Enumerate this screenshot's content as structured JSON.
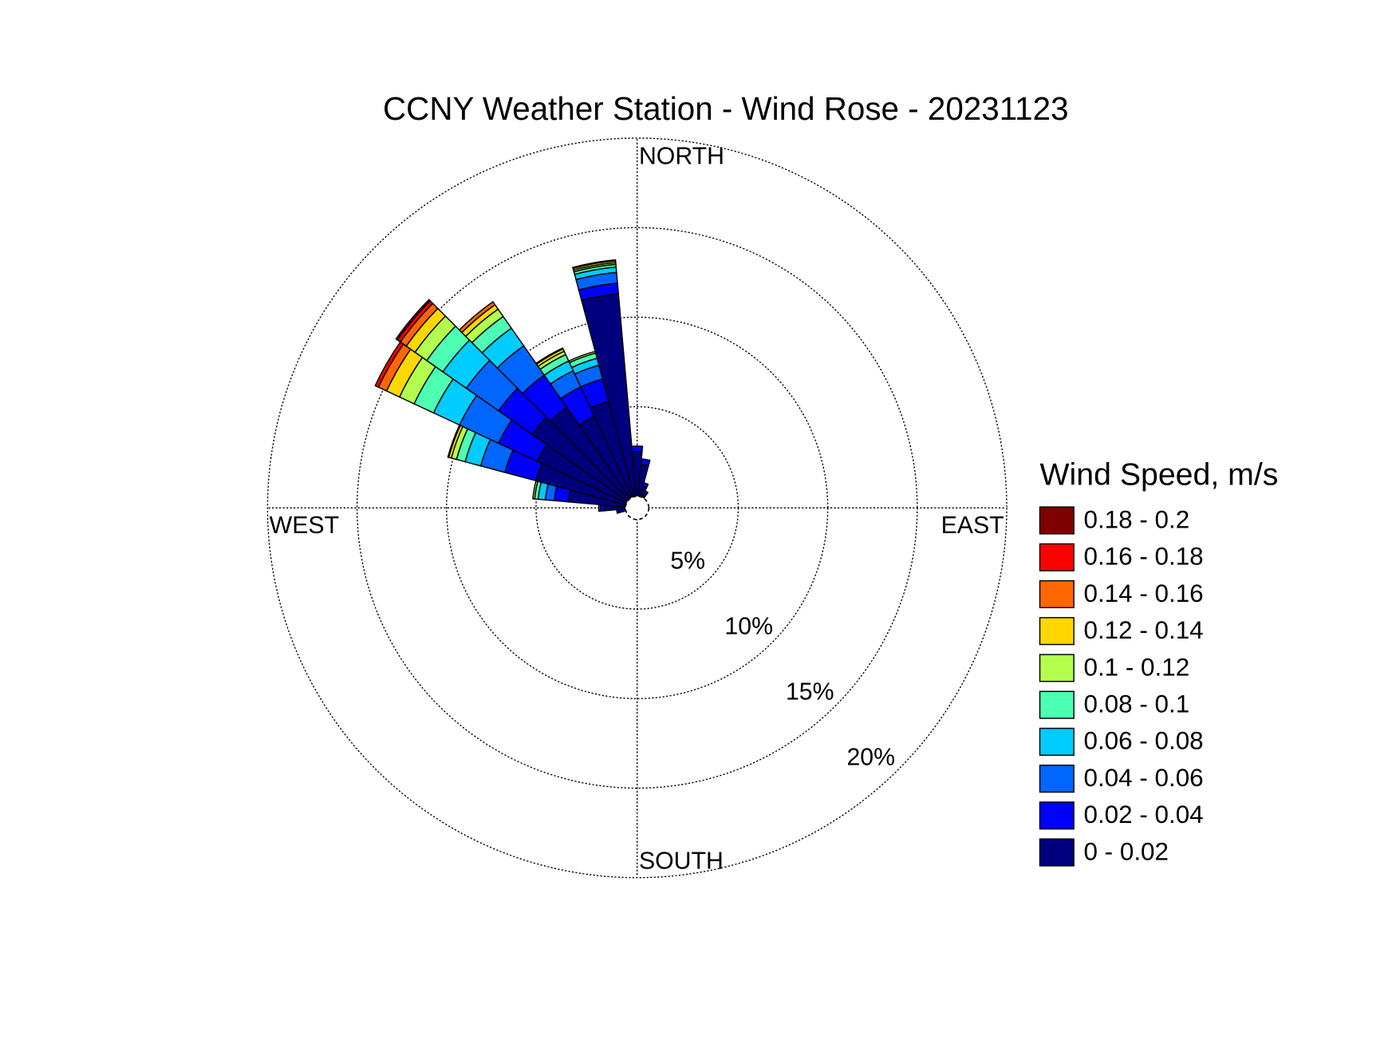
{
  "chart_data": {
    "type": "windrose",
    "title": "CCNY Weather Station - Wind Rose - 20231123",
    "direction_labels": {
      "north": "NORTH",
      "east": "EAST",
      "south": "SOUTH",
      "west": "WEST"
    },
    "legend_title": "Wind Speed, m/s",
    "directions": [
      260,
      270,
      280,
      290,
      300,
      310,
      320,
      330,
      340,
      350,
      0,
      10,
      20,
      30
    ],
    "rlim": [
      0,
      20
    ],
    "rticks": [
      {
        "value": 5,
        "label": "5%"
      },
      {
        "value": 10,
        "label": "10%"
      },
      {
        "value": 15,
        "label": "15%"
      },
      {
        "value": 20,
        "label": "20%"
      }
    ],
    "grid": true,
    "series": [
      {
        "name": "0 - 0.02",
        "color": "#00007f",
        "values": [
          0.4,
          1.2,
          3.2,
          5.2,
          5.5,
          6.5,
          6.2,
          5.0,
          5.5,
          11.35,
          2.5,
          1.8,
          0.6,
          0.4
        ]
      },
      {
        "name": "0.02 - 0.04",
        "color": "#0000ff",
        "values": [
          0.1,
          0.2,
          0.8,
          1.8,
          2.4,
          2.3,
          2.2,
          1.8,
          1.3,
          0.6,
          0.3,
          0.3,
          0.2,
          0
        ]
      },
      {
        "name": "0.04 - 0.06",
        "color": "#0066ff",
        "values": [
          0,
          0.1,
          0.5,
          1.4,
          2.4,
          2.2,
          2.0,
          1.0,
          0.8,
          0.6,
          0,
          0,
          0,
          0
        ]
      },
      {
        "name": "0.06 - 0.08",
        "color": "#00ccff",
        "values": [
          0,
          0,
          0.4,
          0.9,
          1.6,
          1.6,
          1.2,
          0.6,
          0.4,
          0.3,
          0,
          0,
          0,
          0
        ]
      },
      {
        "name": "0.08 - 0.1",
        "color": "#4dffb3",
        "values": [
          0,
          0,
          0.2,
          0.5,
          1.2,
          1.1,
          0.8,
          0.4,
          0.3,
          0.15,
          0,
          0,
          0,
          0
        ]
      },
      {
        "name": "0.1 - 0.12",
        "color": "#b3ff4d",
        "values": [
          0,
          0,
          0.1,
          0.3,
          0.9,
          0.8,
          0.5,
          0.2,
          0.1,
          0.1,
          0,
          0,
          0,
          0
        ]
      },
      {
        "name": "0.12 - 0.14",
        "color": "#ffd700",
        "values": [
          0,
          0,
          0,
          0.15,
          0.8,
          0.6,
          0.3,
          0.15,
          0,
          0.1,
          0,
          0,
          0,
          0
        ]
      },
      {
        "name": "0.14 - 0.16",
        "color": "#ff6600",
        "values": [
          0,
          0,
          0,
          0.05,
          0.5,
          0.4,
          0.2,
          0.05,
          0,
          0.05,
          0,
          0,
          0,
          0
        ]
      },
      {
        "name": "0.16 - 0.18",
        "color": "#ff0000",
        "values": [
          0,
          0,
          0,
          0,
          0.2,
          0.2,
          0,
          0,
          0,
          0,
          0,
          0,
          0,
          0
        ]
      },
      {
        "name": "0.18 - 0.2",
        "color": "#800000",
        "values": [
          0,
          0,
          0,
          0,
          0,
          0.1,
          0,
          0,
          0,
          0,
          0,
          0,
          0,
          0
        ]
      }
    ]
  }
}
